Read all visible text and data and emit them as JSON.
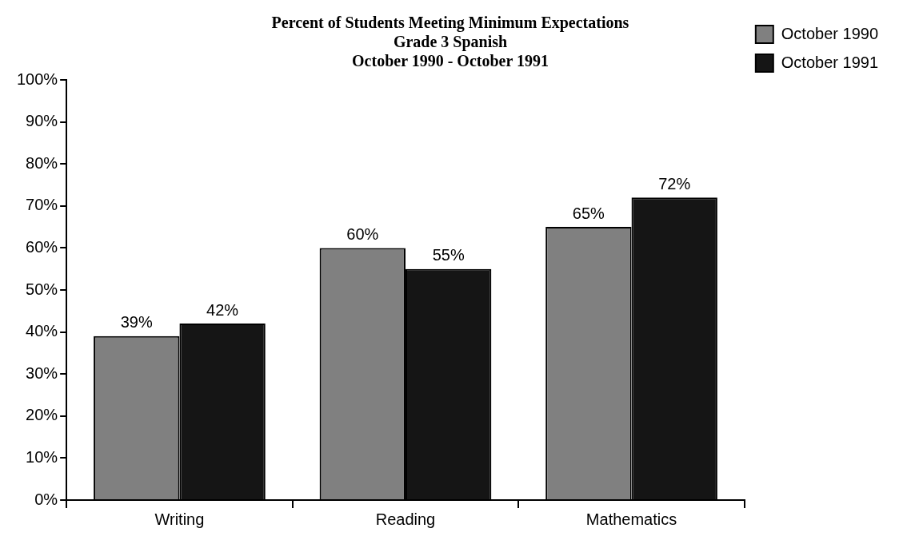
{
  "chart_data": {
    "type": "bar",
    "title": "Percent of Students Meeting Minimum Expectations",
    "subtitle": "Grade 3 Spanish\nOctober 1990 - October 1991",
    "categories": [
      "Writing",
      "Reading",
      "Mathematics"
    ],
    "series": [
      {
        "name": "October 1990",
        "color": "#808080",
        "values": [
          39,
          60,
          65
        ],
        "value_labels": [
          "39%",
          "60%",
          "65%"
        ]
      },
      {
        "name": "October 1991",
        "color": "#151515",
        "values": [
          42,
          55,
          72
        ],
        "value_labels": [
          "42%",
          "55%",
          "72%"
        ]
      }
    ],
    "ylim": [
      0,
      100
    ],
    "yticks": [
      {
        "value": 0,
        "label": "0%"
      },
      {
        "value": 10,
        "label": "10%"
      },
      {
        "value": 20,
        "label": "20%"
      },
      {
        "value": 30,
        "label": "30%"
      },
      {
        "value": 40,
        "label": "40%"
      },
      {
        "value": 50,
        "label": "50%"
      },
      {
        "value": 60,
        "label": "60%"
      },
      {
        "value": 70,
        "label": "70%"
      },
      {
        "value": 80,
        "label": "80%"
      },
      {
        "value": 90,
        "label": "90%"
      },
      {
        "value": 100,
        "label": "100%"
      }
    ],
    "grid": false,
    "legend": "top right"
  }
}
